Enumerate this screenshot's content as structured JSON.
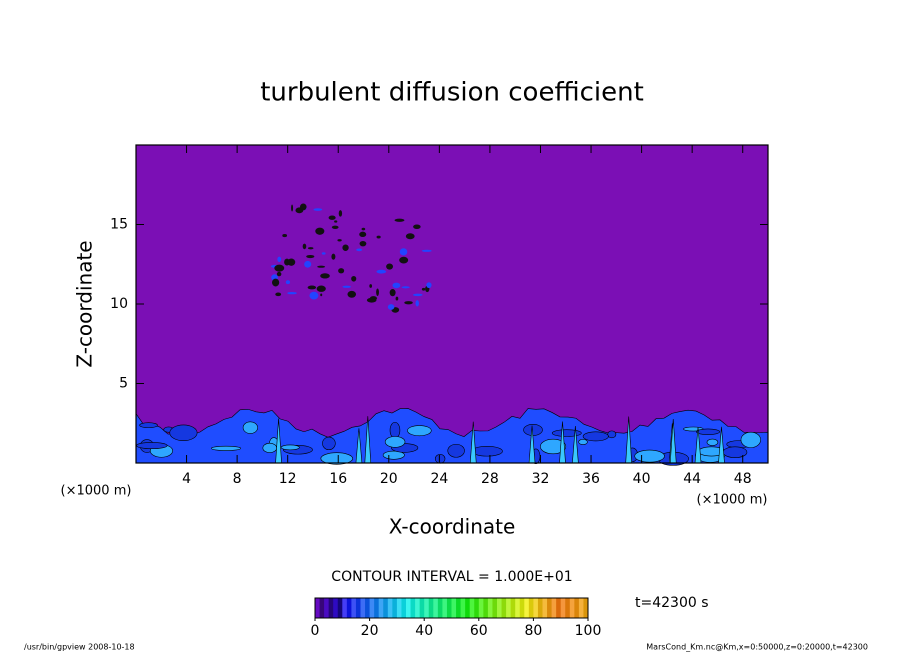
{
  "chart_data": {
    "type": "contour",
    "title": "turbulent diffusion coefficient",
    "xlabel": "X-coordinate",
    "ylabel": "Z-coordinate",
    "x_unit": "(×1000 m)",
    "xlim": [
      0,
      50
    ],
    "xticks": [
      4,
      8,
      12,
      16,
      20,
      24,
      28,
      32,
      36,
      40,
      44,
      48
    ],
    "ylim": [
      0,
      20
    ],
    "yticks": [
      5,
      10,
      15
    ],
    "colorbar": {
      "label": "CONTOUR INTERVAL = 1.000E+01",
      "lim": [
        0,
        100
      ],
      "ticks": [
        0,
        20,
        40,
        60,
        80,
        100
      ]
    },
    "time_label": "t=42300 s",
    "footer_left": "/usr/bin/gpview  2008-10-18",
    "footer_right": "MarsCond_Km.nc@Km,x=0:50000,z=0:20000,t=42300"
  }
}
